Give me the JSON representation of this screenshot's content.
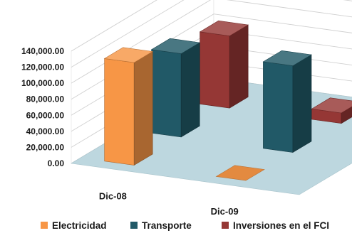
{
  "chart_data": {
    "type": "bar",
    "subtype": "3d-column",
    "title": "",
    "xlabel": "",
    "ylabel": "",
    "categories": [
      "Dic-08",
      "Dic-09"
    ],
    "ylim": [
      0,
      140000
    ],
    "yticks": [
      "0.00",
      "20,000.00",
      "40,000.00",
      "60,000.00",
      "80,000.00",
      "100,000.00",
      "120,000.00",
      "140,000.00"
    ],
    "grid": true,
    "legend_position": "bottom",
    "series": [
      {
        "name": "Electricidad",
        "color": "#F79646",
        "values": [
          128000,
          0
        ]
      },
      {
        "name": "Transporte",
        "color": "#215967",
        "values": [
          104000,
          108000
        ]
      },
      {
        "name": "Inversiones en el FCI",
        "color": "#953735",
        "values": [
          90000,
          13000
        ]
      }
    ]
  }
}
